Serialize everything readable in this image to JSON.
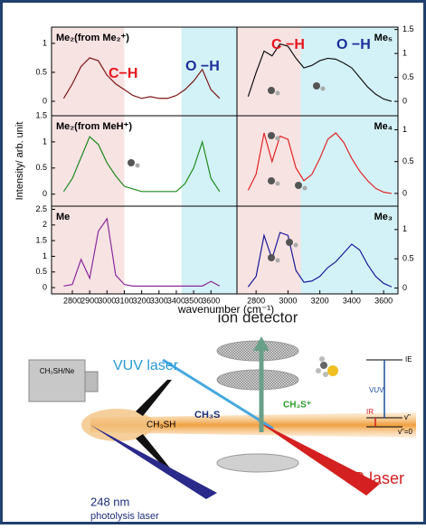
{
  "figure_labels": {
    "y_axis": "Intensity/ arb. unit",
    "x_axis": "wavenumber (cm⁻¹)"
  },
  "chart_data": [
    {
      "type": "line",
      "label": "Me₂(from Me₂⁺)",
      "x": [
        2750,
        2800,
        2850,
        2900,
        2950,
        3000,
        3050,
        3100,
        3150,
        3200,
        3250,
        3300,
        3350,
        3400,
        3450,
        3500,
        3550,
        3600,
        3650
      ],
      "series": [
        {
          "color": "#7b1414",
          "values": [
            0.05,
            0.3,
            0.6,
            0.75,
            0.7,
            0.45,
            0.3,
            0.2,
            0.1,
            0.05,
            0.08,
            0.05,
            0.05,
            0.1,
            0.2,
            0.35,
            0.55,
            0.2,
            0.05
          ]
        }
      ],
      "xlim": [
        2680,
        3750
      ],
      "ylim": [
        -0.25,
        1.28
      ],
      "yticks": [
        0.0,
        0.5,
        1.0
      ],
      "bands": [
        {
          "range": [
            2680,
            3100
          ],
          "color": "#f8e3e3"
        },
        {
          "range": [
            3430,
            3750
          ],
          "color": "#d3f2f7"
        }
      ],
      "annotations": [
        {
          "text": "C−H",
          "color": "#e8141e"
        },
        {
          "text": "O −H",
          "color": "#1c2f9a"
        }
      ]
    },
    {
      "type": "line",
      "label": "Me₅",
      "x": [
        2750,
        2800,
        2850,
        2900,
        2950,
        3000,
        3050,
        3100,
        3150,
        3200,
        3250,
        3300,
        3350,
        3400,
        3450,
        3500,
        3550,
        3600,
        3650
      ],
      "series": [
        {
          "color": "#111111",
          "values": [
            0.1,
            0.6,
            1.05,
            0.95,
            1.2,
            1.15,
            0.9,
            0.7,
            0.75,
            0.85,
            0.9,
            0.88,
            0.8,
            0.7,
            0.5,
            0.3,
            0.15,
            0.05,
            0.0
          ]
        }
      ],
      "xlim": [
        2680,
        3690
      ],
      "ylim": [
        -0.3,
        1.55
      ],
      "yticks": [
        0.0,
        0.5,
        1.0,
        1.5
      ],
      "bands": [
        {
          "range": [
            2680,
            3080
          ],
          "color": "#f8e3e3"
        },
        {
          "range": [
            3080,
            3690
          ],
          "color": "#d3f2f7"
        }
      ],
      "annotations": [
        {
          "text": "C −H",
          "color": "#e8141e"
        },
        {
          "text": "O −H",
          "color": "#1c2f9a"
        }
      ]
    },
    {
      "type": "line",
      "label": "Me₂(from MeH⁺)",
      "x": [
        2750,
        2800,
        2850,
        2900,
        2950,
        3000,
        3050,
        3100,
        3150,
        3200,
        3250,
        3300,
        3350,
        3400,
        3450,
        3500,
        3550,
        3600,
        3650
      ],
      "series": [
        {
          "color": "#1e8a1e",
          "values": [
            0.05,
            0.3,
            0.7,
            1.1,
            0.95,
            0.6,
            0.35,
            0.15,
            0.1,
            0.05,
            0.05,
            0.05,
            0.05,
            0.05,
            0.2,
            0.5,
            1.0,
            0.3,
            0.05
          ]
        }
      ],
      "xlim": [
        2680,
        3750
      ],
      "ylim": [
        -0.23,
        1.5
      ],
      "yticks": [
        0.0,
        0.5,
        1.0,
        1.5
      ],
      "bands": [
        {
          "range": [
            2680,
            3100
          ],
          "color": "#f8e3e3"
        },
        {
          "range": [
            3430,
            3750
          ],
          "color": "#d3f2f7"
        }
      ]
    },
    {
      "type": "line",
      "label": "Me₄",
      "x": [
        2750,
        2800,
        2850,
        2900,
        2950,
        3000,
        3050,
        3100,
        3150,
        3200,
        3250,
        3300,
        3350,
        3400,
        3450,
        3500,
        3550,
        3600,
        3650
      ],
      "series": [
        {
          "color": "#e02424",
          "values": [
            0.05,
            0.3,
            0.95,
            0.5,
            0.9,
            0.85,
            0.4,
            0.2,
            0.3,
            0.55,
            0.85,
            0.95,
            0.8,
            0.55,
            0.35,
            0.2,
            0.08,
            0.02,
            0.0
          ]
        }
      ],
      "xlim": [
        2680,
        3690
      ],
      "ylim": [
        -0.2,
        1.22
      ],
      "yticks": [
        0.0,
        0.5,
        1.0
      ],
      "bands": [
        {
          "range": [
            2680,
            3080
          ],
          "color": "#f8e3e3"
        },
        {
          "range": [
            3080,
            3690
          ],
          "color": "#d3f2f7"
        }
      ]
    },
    {
      "type": "line",
      "label": "Me",
      "x": [
        2750,
        2800,
        2850,
        2900,
        2950,
        3000,
        3050,
        3100,
        3150,
        3200,
        3250,
        3300,
        3350,
        3400,
        3450,
        3500,
        3550,
        3600,
        3650
      ],
      "series": [
        {
          "color": "#8a2a9a",
          "values": [
            0.05,
            0.1,
            0.9,
            0.3,
            1.8,
            2.2,
            0.4,
            0.1,
            0.05,
            0.05,
            0.05,
            0.05,
            0.05,
            0.05,
            0.05,
            0.05,
            0.05,
            0.2,
            0.05
          ]
        }
      ],
      "xlim": [
        2680,
        3750
      ],
      "ylim": [
        -0.2,
        2.6
      ],
      "yticks": [
        0.0,
        0.5,
        1.0,
        1.5,
        2.0,
        2.5
      ],
      "xticks": [
        2800,
        2900,
        3000,
        3100,
        3200,
        3300,
        3400,
        3500,
        3600
      ],
      "bands": [
        {
          "range": [
            2680,
            3100
          ],
          "color": "#f8e3e3"
        },
        {
          "range": [
            3430,
            3750
          ],
          "color": "#d3f2f7"
        }
      ]
    },
    {
      "type": "line",
      "label": "Me₃",
      "x": [
        2750,
        2800,
        2850,
        2900,
        2950,
        3000,
        3050,
        3100,
        3150,
        3200,
        3250,
        3300,
        3350,
        3400,
        3450,
        3500,
        3550,
        3600,
        3650
      ],
      "series": [
        {
          "color": "#1a1a96",
          "values": [
            0.02,
            0.2,
            0.9,
            0.5,
            0.95,
            0.9,
            0.3,
            0.1,
            0.12,
            0.2,
            0.35,
            0.45,
            0.6,
            0.75,
            0.65,
            0.4,
            0.2,
            0.08,
            0.02
          ]
        }
      ],
      "xlim": [
        2680,
        3690
      ],
      "ylim": [
        -0.1,
        1.4
      ],
      "yticks": [
        0.0,
        0.5,
        1.0
      ],
      "xticks": [
        2800,
        3000,
        3200,
        3400,
        3600
      ],
      "bands": [
        {
          "range": [
            2680,
            3080
          ],
          "color": "#f8e3e3"
        },
        {
          "range": [
            3080,
            3690
          ],
          "color": "#d3f2f7"
        }
      ]
    }
  ],
  "diagram": {
    "ion_detector": "ion detector",
    "vuv_laser": "VUV laser",
    "photolysis_1": "248 nm",
    "photolysis_2": "photolysis laser",
    "source": "CH₃SH/Ne",
    "precursor": "CH₃SH",
    "radical": "CH₃S",
    "ion": "CH₃S⁺",
    "ir_laser": "IR laser",
    "ie": "IE",
    "vuv": "VUV",
    "ir": "IR",
    "v1": "v\"",
    "v0": "v\"=0"
  }
}
